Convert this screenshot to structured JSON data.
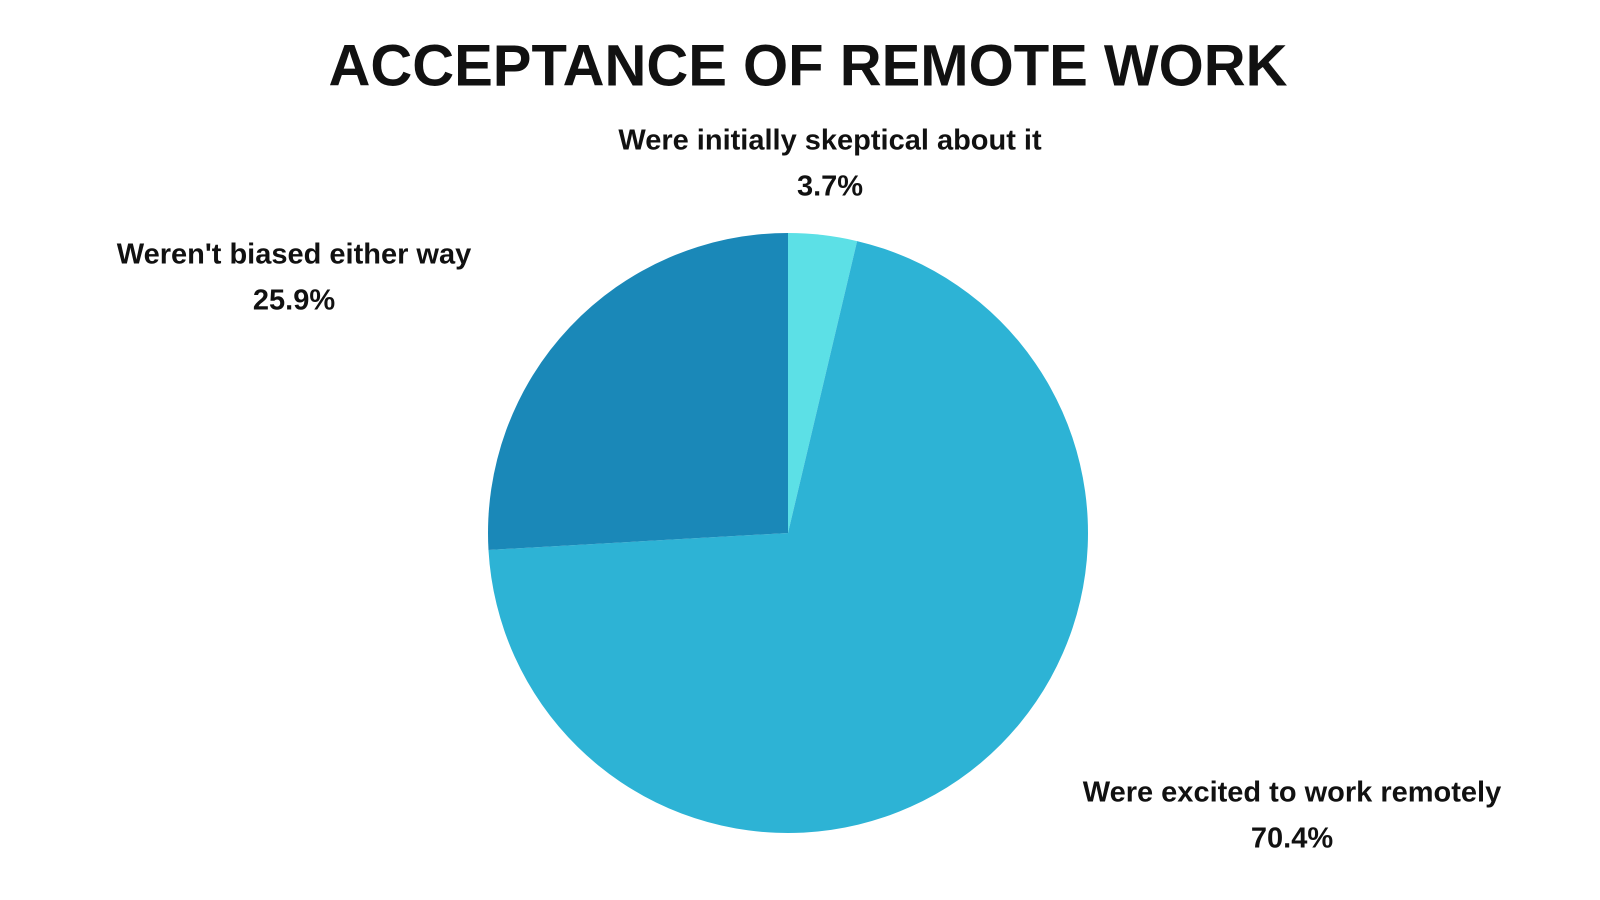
{
  "chart_data": {
    "type": "pie",
    "title": "ACCEPTANCE OF REMOTE WORK",
    "categories": [
      "Were initially skeptical about it",
      "Were excited to work remotely",
      "Weren't biased either way"
    ],
    "values": [
      3.7,
      70.4,
      25.9
    ],
    "value_labels": [
      "3.7%",
      "70.4%",
      "25.9%"
    ],
    "colors": [
      "#5ce0e6",
      "#2db3d5",
      "#1a88b8"
    ]
  }
}
